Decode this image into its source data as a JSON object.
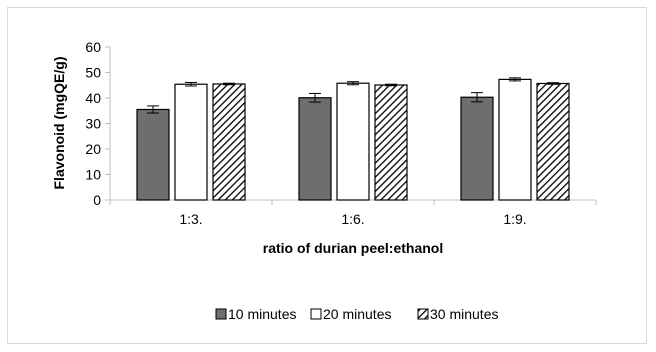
{
  "chart_data": {
    "type": "bar",
    "ylabel": "Flavonoid (mgQE/g)",
    "xlabel": "ratio of durian peel:ethanol",
    "ylim": [
      0,
      60
    ],
    "yticks": [
      0,
      10,
      20,
      30,
      40,
      50,
      60
    ],
    "categories": [
      "1:3.",
      "1:6.",
      "1:9."
    ],
    "series": [
      {
        "name": "10 minutes",
        "values": [
          35.5,
          40.1,
          40.3
        ],
        "errors": [
          1.4,
          1.7,
          1.8
        ],
        "fill": "solid",
        "color": "#6e6e6e"
      },
      {
        "name": "20 minutes",
        "values": [
          45.4,
          45.8,
          47.3
        ],
        "errors": [
          0.7,
          0.6,
          0.6
        ],
        "fill": "white",
        "color": "#ffffff"
      },
      {
        "name": "30 minutes",
        "values": [
          45.5,
          45.1,
          45.7
        ],
        "errors": [
          0.3,
          0.3,
          0.3
        ],
        "fill": "hatch",
        "color": "#000000"
      }
    ],
    "grid": false,
    "legend_position": "bottom"
  }
}
